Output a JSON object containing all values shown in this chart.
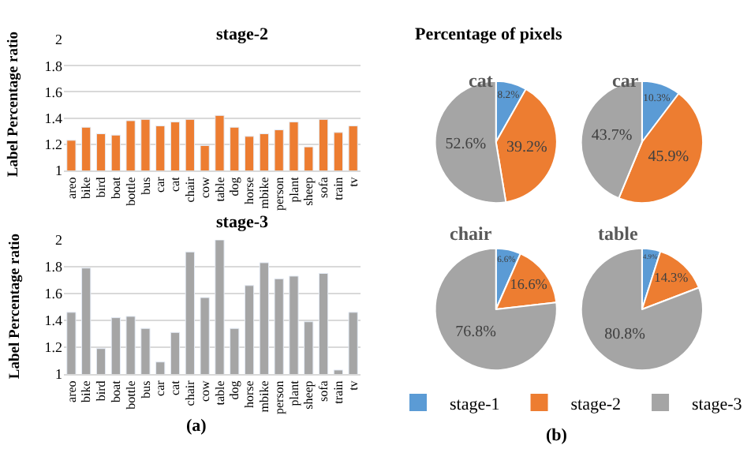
{
  "chart_data": [
    {
      "type": "bar",
      "title": "stage-2",
      "ylabel": "Label Percentage ratio",
      "categories": [
        "areo",
        "bike",
        "bird",
        "boat",
        "bottle",
        "bus",
        "car",
        "cat",
        "chair",
        "cow",
        "table",
        "dog",
        "horse",
        "mbike",
        "person",
        "plant",
        "sheep",
        "sofa",
        "train",
        "tv"
      ],
      "values": [
        1.23,
        1.33,
        1.28,
        1.27,
        1.38,
        1.39,
        1.34,
        1.37,
        1.39,
        1.19,
        1.42,
        1.33,
        1.26,
        1.28,
        1.31,
        1.37,
        1.18,
        1.39,
        1.29,
        1.34
      ],
      "color": "#ed7d31",
      "ylim": [
        1,
        2
      ],
      "yticks": [
        1,
        1.2,
        1.4,
        1.6,
        1.8,
        2
      ],
      "grid": "y"
    },
    {
      "type": "bar",
      "title": "stage-3",
      "ylabel": "Label Percentage ratio",
      "categories": [
        "areo",
        "bike",
        "bird",
        "boat",
        "bottle",
        "bus",
        "car",
        "cat",
        "chair",
        "cow",
        "table",
        "dog",
        "horse",
        "mbike",
        "person",
        "plant",
        "sheep",
        "sofa",
        "train",
        "tv"
      ],
      "values": [
        1.46,
        1.79,
        1.19,
        1.42,
        1.43,
        1.34,
        1.09,
        1.31,
        1.91,
        1.57,
        2.0,
        1.34,
        1.66,
        1.83,
        1.71,
        1.73,
        1.39,
        1.75,
        1.03,
        1.46
      ],
      "color": "#a5a5a5",
      "ylim": [
        1,
        2
      ],
      "yticks": [
        1,
        1.2,
        1.4,
        1.6,
        1.8,
        2
      ],
      "grid": "y",
      "annotations": [
        "(a)"
      ]
    },
    {
      "type": "pie",
      "title": "cat",
      "categories": [
        "stage-1",
        "stage-2",
        "stage-3"
      ],
      "values": [
        8.2,
        39.2,
        52.6
      ],
      "colors": [
        "#5b9bd5",
        "#ed7d31",
        "#a5a5a5"
      ],
      "value_labels": [
        "8.2%",
        "39.2%",
        "52.6%"
      ],
      "legend": "bottom",
      "annotations": [
        "Percentage of pixels"
      ]
    },
    {
      "type": "pie",
      "title": "car",
      "categories": [
        null,
        null,
        null
      ],
      "values": [
        10.3,
        45.9,
        43.7
      ],
      "colors": [
        "#5b9bd5",
        "#ed7d31",
        "#a5a5a5"
      ],
      "value_labels": [
        "10.3%",
        "45.9%",
        "43.7%"
      ]
    },
    {
      "type": "pie",
      "title": "chair",
      "categories": [
        null,
        null,
        null
      ],
      "values": [
        6.6,
        16.6,
        76.8
      ],
      "colors": [
        "#5b9bd5",
        "#ed7d31",
        "#a5a5a5"
      ],
      "value_labels": [
        "6.6%",
        "16.6%",
        "76.8%"
      ]
    },
    {
      "type": "pie",
      "title": "table",
      "categories": [
        null,
        null,
        null
      ],
      "values": [
        4.9,
        14.3,
        80.8
      ],
      "colors": [
        "#5b9bd5",
        "#ed7d31",
        "#a5a5a5"
      ],
      "value_labels": [
        "4.9%",
        "14.3%",
        "80.8%"
      ],
      "annotations": [
        "(b)"
      ]
    }
  ]
}
